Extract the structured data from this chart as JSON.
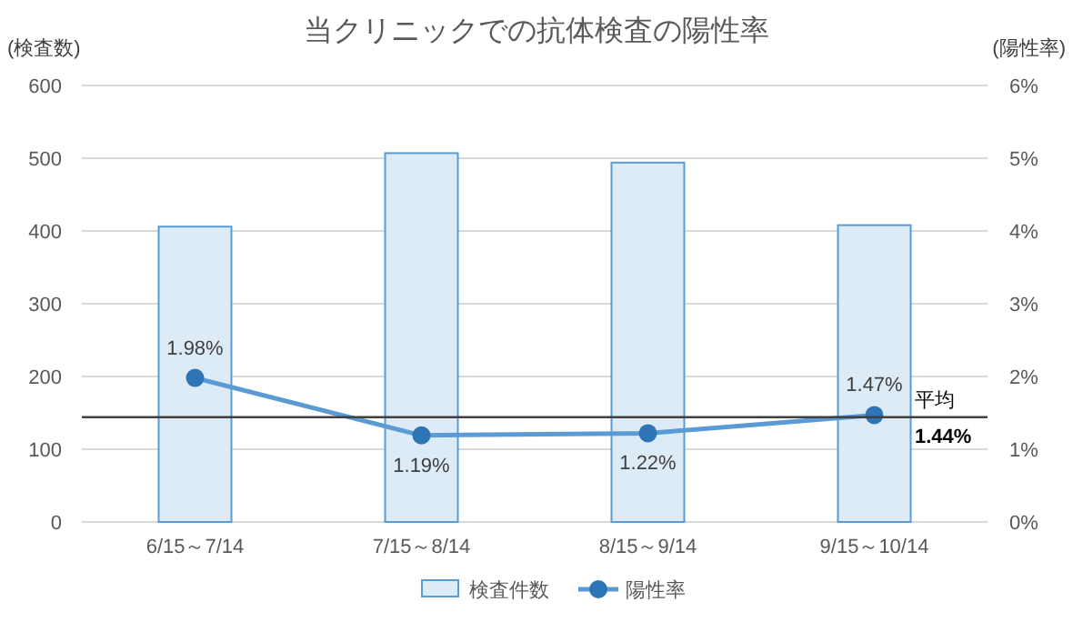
{
  "chart_data": {
    "type": "bar",
    "title": "当クリニックでの抗体検査の陽性率",
    "ylabel": "(検査数)",
    "y2label": "(陽性率)",
    "categories": [
      "6/15～7/14",
      "7/15～8/14",
      "8/15～9/14",
      "9/15～10/14"
    ],
    "series": [
      {
        "name": "検査件数",
        "color": "#ddebf7",
        "values": [
          406,
          507,
          494,
          408
        ]
      },
      {
        "name": "陽性率",
        "type": "line",
        "axis": "y2",
        "color": "#5b9bd5",
        "marker": "circle",
        "values": [
          1.98,
          1.19,
          1.22,
          1.47
        ],
        "value_labels": [
          "1.98%",
          "1.19%",
          "1.22%",
          "1.47%"
        ]
      }
    ],
    "ylim": [
      0,
      600
    ],
    "yticks": [
      0,
      100,
      200,
      300,
      400,
      500,
      600
    ],
    "y2lim": [
      0,
      6
    ],
    "y2ticks": [
      {
        "value": 0,
        "label": "0%"
      },
      {
        "value": 1,
        "label": "1%"
      },
      {
        "value": 2,
        "label": "2%"
      },
      {
        "value": 3,
        "label": "3%"
      },
      {
        "value": 4,
        "label": "4%"
      },
      {
        "value": 5,
        "label": "5%"
      },
      {
        "value": 6,
        "label": "6%"
      }
    ],
    "ref_lines": [
      {
        "axis": "y2",
        "value": 1.44,
        "label": "平均\n1.44%",
        "color": "#404040"
      }
    ],
    "grid": "y",
    "legend": "bottom"
  }
}
